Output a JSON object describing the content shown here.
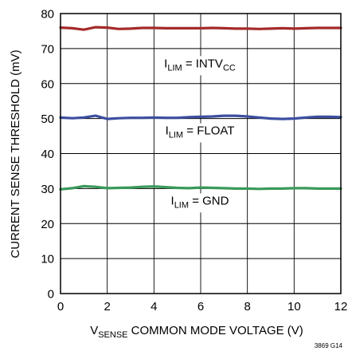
{
  "chart_data": {
    "type": "line",
    "xlabel": {
      "main": "V",
      "sub": "SENSE",
      "rest": " COMMON MODE VOLTAGE (V)"
    },
    "ylabel": "CURRENT SENSE THRESHOLD (mV)",
    "xlim": [
      0,
      12
    ],
    "ylim": [
      0,
      80
    ],
    "x_ticks": [
      "0",
      "2",
      "4",
      "6",
      "8",
      "10",
      "12"
    ],
    "y_ticks": [
      "0",
      "10",
      "20",
      "30",
      "40",
      "50",
      "60",
      "70",
      "80"
    ],
    "grid": true,
    "figure_id": "3869 G14",
    "series": [
      {
        "label": {
          "main": "I",
          "sub": "LIM",
          "mid": " = INTV",
          "sub2": "CC"
        },
        "color": "#a52a2a",
        "x": [
          0,
          0.5,
          1.0,
          1.5,
          2,
          2.5,
          3,
          3.5,
          4,
          4.5,
          5,
          5.5,
          6,
          6.5,
          7,
          7.5,
          8,
          8.5,
          9,
          9.5,
          10,
          10.5,
          11,
          11.5,
          12
        ],
        "y": [
          76.0,
          75.8,
          75.4,
          76.1,
          76.0,
          75.6,
          75.7,
          75.9,
          75.9,
          75.8,
          75.8,
          75.8,
          75.8,
          75.9,
          75.8,
          75.7,
          75.7,
          75.6,
          75.7,
          75.8,
          75.7,
          75.8,
          75.9,
          75.9,
          75.9
        ]
      },
      {
        "label": {
          "main": "I",
          "sub": "LIM",
          "mid": " = FLOAT",
          "sub2": ""
        },
        "color": "#3c4fa0",
        "x": [
          0,
          0.5,
          1.0,
          1.5,
          2,
          2.5,
          3,
          3.5,
          4,
          4.5,
          5,
          5.5,
          6,
          6.5,
          7,
          7.5,
          8,
          8.5,
          9,
          9.5,
          10,
          10.5,
          11,
          11.5,
          12
        ],
        "y": [
          50.3,
          50.1,
          50.3,
          50.8,
          49.9,
          50.1,
          50.2,
          50.2,
          50.3,
          50.2,
          50.2,
          50.4,
          50.5,
          50.6,
          50.8,
          50.8,
          50.6,
          50.3,
          50.0,
          49.9,
          50.0,
          50.3,
          50.5,
          50.5,
          50.4
        ]
      },
      {
        "label": {
          "main": "I",
          "sub": "LIM",
          "mid": " = GND",
          "sub2": ""
        },
        "color": "#3a9a5a",
        "x": [
          0,
          0.5,
          1.0,
          1.5,
          2,
          2.5,
          3,
          3.5,
          4,
          4.5,
          5,
          5.5,
          6,
          6.5,
          7,
          7.5,
          8,
          8.5,
          9,
          9.5,
          10,
          10.5,
          11,
          11.5,
          12
        ],
        "y": [
          29.8,
          30.1,
          30.7,
          30.5,
          30.1,
          30.2,
          30.3,
          30.5,
          30.6,
          30.4,
          30.2,
          30.1,
          30.3,
          30.2,
          30.1,
          30.0,
          30.0,
          29.9,
          30.0,
          30.0,
          30.1,
          30.1,
          30.0,
          30.0,
          30.0
        ]
      }
    ]
  }
}
